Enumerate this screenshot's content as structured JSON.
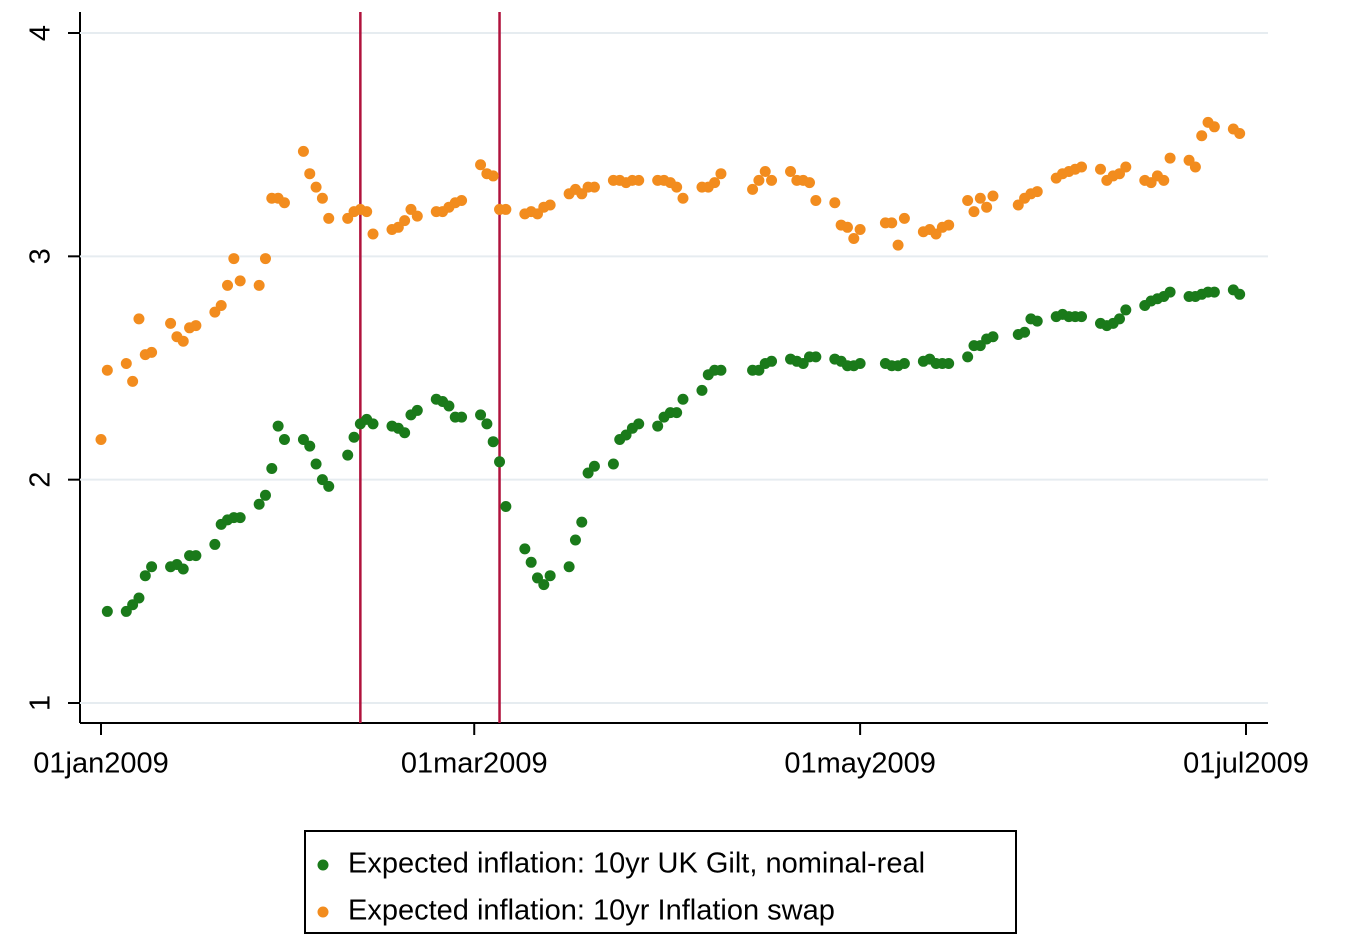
{
  "chart_data": {
    "type": "scatter",
    "x": [
      "2009-01-01",
      "2009-01-02",
      "2009-01-05",
      "2009-01-06",
      "2009-01-07",
      "2009-01-08",
      "2009-01-09",
      "2009-01-12",
      "2009-01-13",
      "2009-01-14",
      "2009-01-15",
      "2009-01-16",
      "2009-01-19",
      "2009-01-20",
      "2009-01-21",
      "2009-01-22",
      "2009-01-23",
      "2009-01-26",
      "2009-01-27",
      "2009-01-28",
      "2009-01-29",
      "2009-01-30",
      "2009-02-02",
      "2009-02-03",
      "2009-02-04",
      "2009-02-05",
      "2009-02-06",
      "2009-02-09",
      "2009-02-10",
      "2009-02-11",
      "2009-02-12",
      "2009-02-13",
      "2009-02-16",
      "2009-02-17",
      "2009-02-18",
      "2009-02-19",
      "2009-02-20",
      "2009-02-23",
      "2009-02-24",
      "2009-02-25",
      "2009-02-26",
      "2009-02-27",
      "2009-03-02",
      "2009-03-03",
      "2009-03-04",
      "2009-03-05",
      "2009-03-06",
      "2009-03-09",
      "2009-03-10",
      "2009-03-11",
      "2009-03-12",
      "2009-03-13",
      "2009-03-16",
      "2009-03-17",
      "2009-03-18",
      "2009-03-19",
      "2009-03-20",
      "2009-03-23",
      "2009-03-24",
      "2009-03-25",
      "2009-03-26",
      "2009-03-27",
      "2009-03-30",
      "2009-03-31",
      "2009-04-01",
      "2009-04-02",
      "2009-04-03",
      "2009-04-06",
      "2009-04-07",
      "2009-04-08",
      "2009-04-09",
      "2009-04-14",
      "2009-04-15",
      "2009-04-16",
      "2009-04-17",
      "2009-04-20",
      "2009-04-21",
      "2009-04-22",
      "2009-04-23",
      "2009-04-24",
      "2009-04-27",
      "2009-04-28",
      "2009-04-29",
      "2009-04-30",
      "2009-05-01",
      "2009-05-05",
      "2009-05-06",
      "2009-05-07",
      "2009-05-08",
      "2009-05-11",
      "2009-05-12",
      "2009-05-13",
      "2009-05-14",
      "2009-05-15",
      "2009-05-18",
      "2009-05-19",
      "2009-05-20",
      "2009-05-21",
      "2009-05-22",
      "2009-05-26",
      "2009-05-27",
      "2009-05-28",
      "2009-05-29",
      "2009-06-01",
      "2009-06-02",
      "2009-06-03",
      "2009-06-04",
      "2009-06-05",
      "2009-06-08",
      "2009-06-09",
      "2009-06-10",
      "2009-06-11",
      "2009-06-12",
      "2009-06-15",
      "2009-06-16",
      "2009-06-17",
      "2009-06-18",
      "2009-06-19",
      "2009-06-22",
      "2009-06-23",
      "2009-06-24",
      "2009-06-25",
      "2009-06-26",
      "2009-06-29",
      "2009-06-30"
    ],
    "series": [
      {
        "name": "Expected inflation: 10yr UK Gilt, nominal-real",
        "color": "#1a7a1a",
        "values": [
          null,
          1.41,
          1.41,
          1.44,
          1.47,
          1.57,
          1.61,
          1.61,
          1.62,
          1.6,
          1.66,
          1.66,
          1.71,
          1.8,
          1.82,
          1.83,
          1.83,
          1.89,
          1.93,
          2.05,
          2.24,
          2.18,
          2.18,
          2.15,
          2.07,
          2.0,
          1.97,
          2.11,
          2.19,
          2.25,
          2.27,
          2.25,
          2.24,
          2.23,
          2.21,
          2.29,
          2.31,
          2.36,
          2.35,
          2.33,
          2.28,
          2.28,
          2.29,
          2.25,
          2.17,
          2.08,
          1.88,
          1.69,
          1.63,
          1.56,
          1.53,
          1.57,
          1.61,
          1.73,
          1.81,
          2.03,
          2.06,
          2.07,
          2.18,
          2.2,
          2.23,
          2.25,
          2.24,
          2.28,
          2.3,
          2.3,
          2.36,
          2.4,
          2.47,
          2.49,
          2.49,
          2.49,
          2.49,
          2.52,
          2.53,
          2.54,
          2.53,
          2.52,
          2.55,
          2.55,
          2.54,
          2.53,
          2.51,
          2.51,
          2.52,
          2.52,
          2.51,
          2.51,
          2.52,
          2.53,
          2.54,
          2.52,
          2.52,
          2.52,
          2.55,
          2.6,
          2.6,
          2.63,
          2.64,
          2.65,
          2.66,
          2.72,
          2.71,
          2.73,
          2.74,
          2.73,
          2.73,
          2.73,
          2.7,
          2.69,
          2.7,
          2.72,
          2.76,
          2.78,
          2.8,
          2.81,
          2.82,
          2.84,
          2.82,
          2.82,
          2.83,
          2.84,
          2.84,
          2.85,
          2.83
        ]
      },
      {
        "name": "Expected inflation: 10yr Inflation swap",
        "color": "#f28c1e",
        "values": [
          2.18,
          2.49,
          2.52,
          2.44,
          2.72,
          2.56,
          2.57,
          2.7,
          2.64,
          2.62,
          2.68,
          2.69,
          2.75,
          2.78,
          2.87,
          2.99,
          2.89,
          2.87,
          2.99,
          3.26,
          3.26,
          3.24,
          3.47,
          3.37,
          3.31,
          3.26,
          3.17,
          3.17,
          3.2,
          3.21,
          3.2,
          3.1,
          3.12,
          3.13,
          3.16,
          3.21,
          3.18,
          3.2,
          3.2,
          3.22,
          3.24,
          3.25,
          3.41,
          3.37,
          3.36,
          3.21,
          3.21,
          3.19,
          3.2,
          3.19,
          3.22,
          3.23,
          3.28,
          3.3,
          3.28,
          3.31,
          3.31,
          3.34,
          3.34,
          3.33,
          3.34,
          3.34,
          3.34,
          3.34,
          3.33,
          3.31,
          3.26,
          3.31,
          3.31,
          3.33,
          3.37,
          3.3,
          3.34,
          3.38,
          3.34,
          3.38,
          3.34,
          3.34,
          3.33,
          3.25,
          3.24,
          3.14,
          3.13,
          3.08,
          3.12,
          3.15,
          3.15,
          3.05,
          3.17,
          3.11,
          3.12,
          3.1,
          3.13,
          3.14,
          3.25,
          3.2,
          3.26,
          3.22,
          3.27,
          3.23,
          3.26,
          3.28,
          3.29,
          3.35,
          3.37,
          3.38,
          3.39,
          3.4,
          3.39,
          3.34,
          3.36,
          3.37,
          3.4,
          3.34,
          3.33,
          3.36,
          3.34,
          3.44,
          3.43,
          3.4,
          3.54,
          3.6,
          3.58,
          3.57,
          3.55
        ]
      }
    ],
    "xlim": [
      "2009-01-01",
      "2009-07-01"
    ],
    "xticks": [
      {
        "value": "2009-01-01",
        "label": "01jan2009"
      },
      {
        "value": "2009-03-01",
        "label": "01mar2009"
      },
      {
        "value": "2009-05-01",
        "label": "01may2009"
      },
      {
        "value": "2009-07-01",
        "label": "01jul2009"
      }
    ],
    "ylim": [
      1,
      4
    ],
    "yticks": [
      1,
      2,
      3,
      4
    ],
    "grid": true,
    "vlines": [
      "2009-02-11",
      "2009-03-05"
    ],
    "vline_color": "#b0123c",
    "legend": "bottom"
  }
}
